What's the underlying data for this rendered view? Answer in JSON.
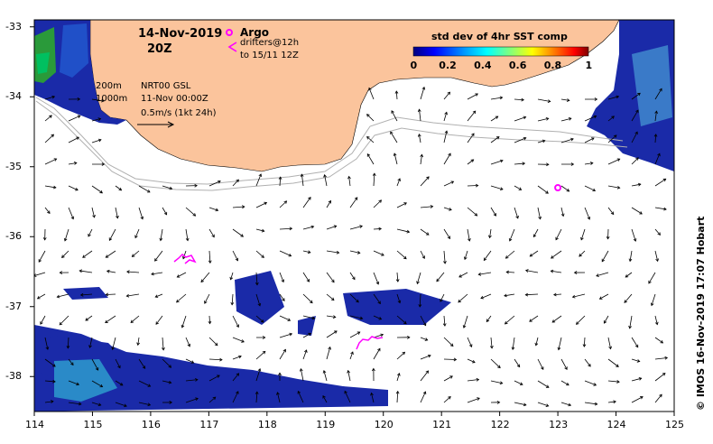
{
  "header": {
    "date": "14-Nov-2019",
    "hour": "20Z",
    "argo_label": "Argo",
    "drifters_label": "drifters@12h",
    "drifters_until": "to 15/11 12Z"
  },
  "legend_notes": {
    "iso_200": "200m",
    "iso_1000": "1000m",
    "product": "NRT00 GSL",
    "product_time": "11-Nov 00:00Z",
    "scale_arrow": "0.5m/s (1kt 24h)"
  },
  "colorbar": {
    "title": "std dev of 4hr SST comp",
    "ticks": [
      "0",
      "0.2",
      "0.4",
      "0.6",
      "0.8",
      "1"
    ],
    "colors": [
      "#00007f",
      "#0000ff",
      "#007fff",
      "#00ffff",
      "#7fff7f",
      "#ffff00",
      "#ff7f00",
      "#ff0000",
      "#7f0000"
    ]
  },
  "credit": "© IMOS 16-Nov-2019 17:07 Hobart",
  "axes": {
    "x_ticks": [
      "114",
      "115",
      "116",
      "117",
      "118",
      "119",
      "120",
      "121",
      "122",
      "123",
      "124",
      "125"
    ],
    "y_ticks": [
      "-33",
      "-34",
      "-35",
      "-36",
      "-37",
      "-38"
    ],
    "lon_range": [
      114,
      125
    ],
    "lat_range": [
      -38.5,
      -32.9
    ]
  },
  "argo_float": {
    "lon": 123.0,
    "lat": -35.3
  },
  "colors": {
    "land": "#fbc49c",
    "argo": "#ff00ff",
    "isobath": "#b0b0b0"
  }
}
